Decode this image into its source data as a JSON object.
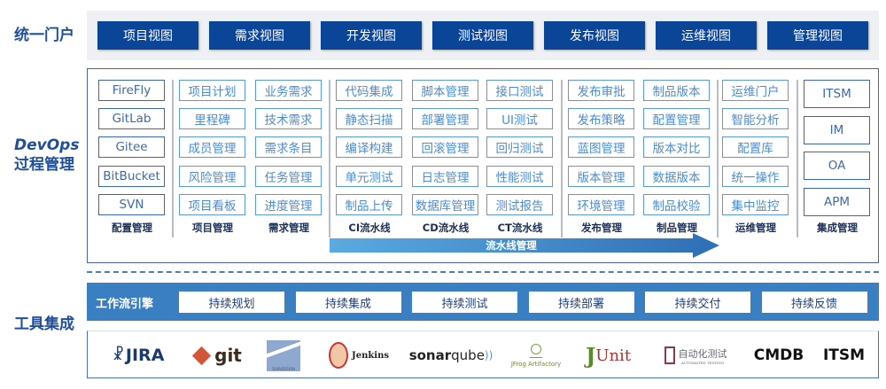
{
  "side_labels": {
    "portal": "统一门户",
    "devops_1": "DevOps",
    "devops_2": "过程管理",
    "tools": "工具集成"
  },
  "portal_views": [
    "项目视图",
    "需求视图",
    "开发视图",
    "测试视图",
    "发布视图",
    "运维视图",
    "管理视图"
  ],
  "columns": [
    {
      "label": "配置管理",
      "items": [
        "FireFly",
        "GitLab",
        "Gitee",
        "BitBucket",
        "SVN"
      ]
    },
    {
      "label": "项目管理",
      "items": [
        "项目计划",
        "里程碑",
        "成员管理",
        "风险管理",
        "项目看板"
      ]
    },
    {
      "label": "需求管理",
      "items": [
        "业务需求",
        "技术需求",
        "需求条目",
        "任务管理",
        "进度管理"
      ]
    },
    {
      "label": "CI流水线",
      "items": [
        "代码集成",
        "静态扫描",
        "编译构建",
        "单元测试",
        "制品上传"
      ]
    },
    {
      "label": "CD流水线",
      "items": [
        "脚本管理",
        "部署管理",
        "回滚管理",
        "日志管理",
        "数据库管理"
      ]
    },
    {
      "label": "CT流水线",
      "items": [
        "接口测试",
        "UI测试",
        "回归测试",
        "性能测试",
        "测试报告"
      ]
    },
    {
      "label": "发布管理",
      "items": [
        "发布审批",
        "发布策略",
        "蓝图管理",
        "版本管理",
        "环境管理"
      ]
    },
    {
      "label": "制品管理",
      "items": [
        "制品版本",
        "配置管理",
        "版本对比",
        "数据版本",
        "制品校验"
      ]
    },
    {
      "label": "运维管理",
      "items": [
        "运维门户",
        "智能分析",
        "配置库",
        "统一操作",
        "集中监控"
      ]
    },
    {
      "label": "集成管理",
      "items": [
        "ITSM",
        "IM",
        "OA",
        "APM"
      ]
    }
  ],
  "pipeline_label": "流水线管理",
  "workflow": {
    "label": "工作流引擎",
    "items": [
      "持续规划",
      "持续集成",
      "持续测试",
      "持续部署",
      "持续交付",
      "持续反馈"
    ]
  },
  "tool_logos": {
    "jira": "JIRA",
    "git": "git",
    "subversion": "SUBVERSION",
    "jenkins": "Jenkins",
    "sonar_a": "sonar",
    "sonar_b": "qube",
    "jfrog": "JFrog Artifactory",
    "junit_a": "J",
    "junit_b": "Unit",
    "autotest": "自动化测试",
    "autotest_sub": "AUTOMATED TESTING",
    "cmdb": "CMDB",
    "itsm": "ITSM"
  },
  "colors": {
    "portal_button": "#0b4597",
    "workflow_band": "#3a7fc1",
    "box_border": "#5b9bd5",
    "label": "#1f4e9b"
  }
}
